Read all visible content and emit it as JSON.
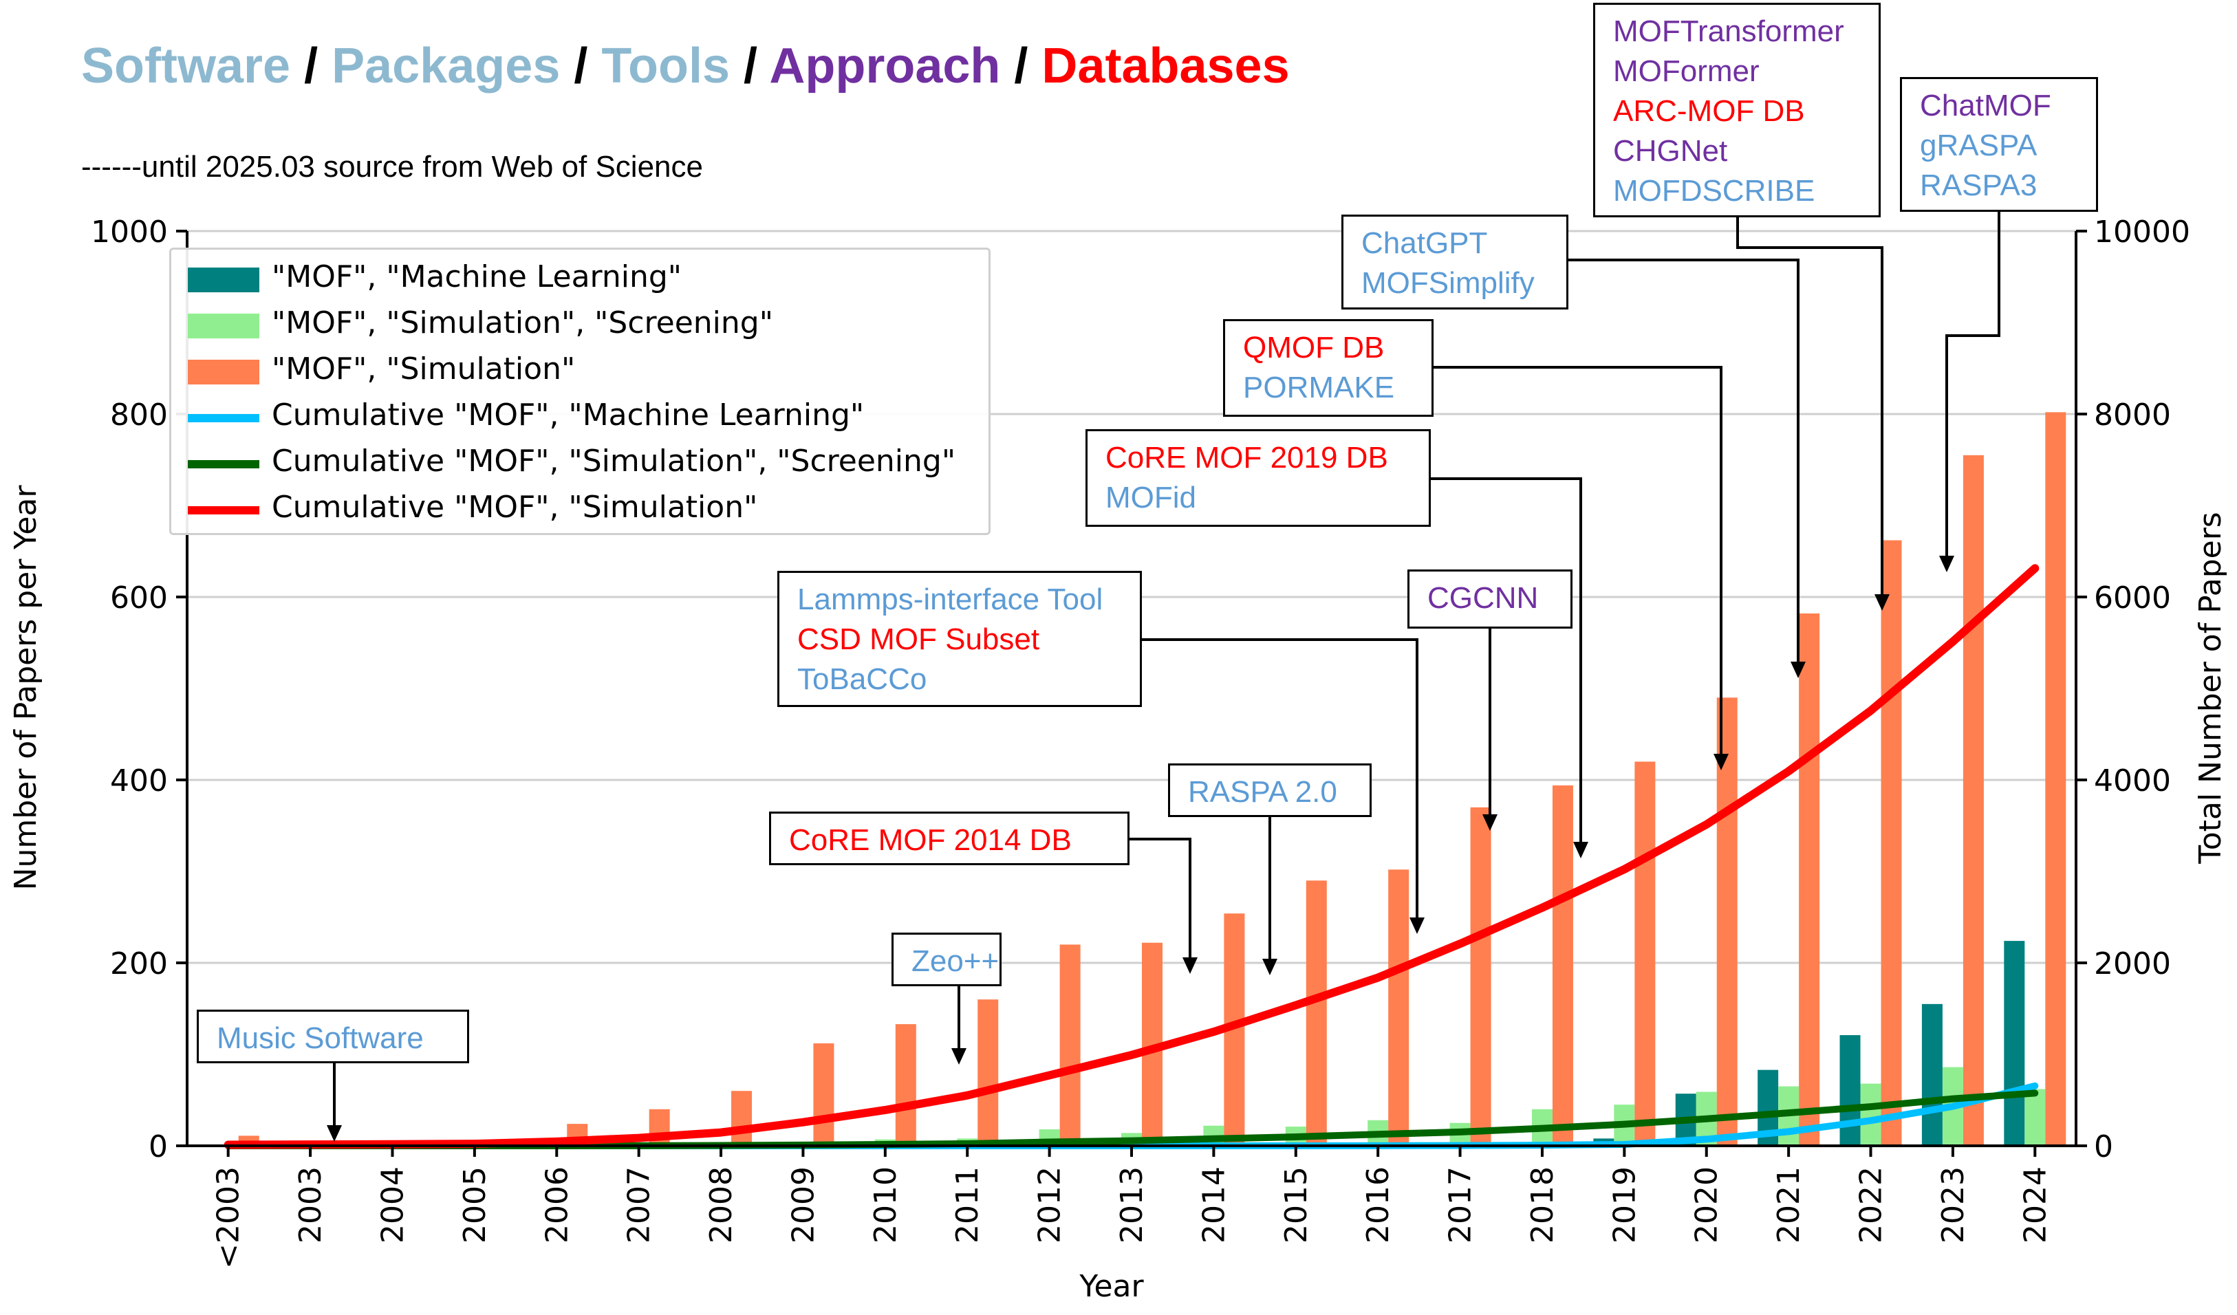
{
  "title": {
    "parts": [
      {
        "text": "Software",
        "color": "#8db9d0"
      },
      {
        "text": " / ",
        "color": "#000000"
      },
      {
        "text": "Packages",
        "color": "#8db9d0"
      },
      {
        "text": " / ",
        "color": "#000000"
      },
      {
        "text": "Tools",
        "color": "#8db9d0"
      },
      {
        "text": " / ",
        "color": "#000000"
      },
      {
        "text": "Approach",
        "color": "#7030a0"
      },
      {
        "text": " / ",
        "color": "#000000"
      },
      {
        "text": "Databases",
        "color": "#ff0000"
      }
    ]
  },
  "subtitle": "------until 2025.03 source from Web of Science",
  "colors": {
    "software": "#5b9bd5",
    "approach": "#7030a0",
    "database": "#ff0000",
    "ml_bar": "#00807f",
    "screening_bar": "#90ee90",
    "simulation_bar": "#ff7f50",
    "cum_ml": "#00bfff",
    "cum_screening": "#006400",
    "cum_simulation": "#ff0000"
  },
  "chart_data": {
    "type": "bar",
    "categories": [
      "<2003",
      "2003",
      "2004",
      "2005",
      "2006",
      "2007",
      "2008",
      "2009",
      "2010",
      "2011",
      "2012",
      "2013",
      "2014",
      "2015",
      "2016",
      "2017",
      "2018",
      "2019",
      "2020",
      "2021",
      "2022",
      "2023",
      "2024"
    ],
    "xlabel": "Year",
    "ylabel": "Number of Papers per Year",
    "ylabel_right": "Total Number of Papers",
    "ylim": [
      0,
      1000
    ],
    "ylim_right": [
      0,
      10000
    ],
    "yticks": [
      0,
      200,
      400,
      600,
      800,
      1000
    ],
    "yticks_right": [
      0,
      2000,
      4000,
      6000,
      8000,
      10000
    ],
    "grid": true,
    "legend_position": "top-left",
    "series": [
      {
        "name": "\"MOF\", \"Machine Learning\"",
        "kind": "bar",
        "axis": "left",
        "color": "#00807f",
        "values": [
          0,
          0,
          0,
          0,
          0,
          0,
          0,
          0,
          0,
          0,
          0,
          0,
          0,
          0,
          1,
          2,
          4,
          8,
          57,
          83,
          121,
          155,
          224
        ]
      },
      {
        "name": "\"MOF\", \"Simulation\", \"Screening\"",
        "kind": "bar",
        "axis": "left",
        "color": "#90ee90",
        "values": [
          0,
          0,
          0,
          0,
          0,
          1,
          3,
          4,
          7,
          8,
          18,
          14,
          22,
          21,
          28,
          25,
          40,
          45,
          59,
          65,
          68,
          86,
          62
        ]
      },
      {
        "name": "\"MOF\", \"Simulation\"",
        "kind": "bar",
        "axis": "left",
        "color": "#ff7f50",
        "values": [
          11,
          3,
          3,
          5,
          24,
          40,
          60,
          112,
          133,
          160,
          220,
          222,
          254,
          290,
          302,
          370,
          394,
          420,
          490,
          582,
          662,
          755,
          802
        ]
      },
      {
        "name": "Cumulative \"MOF\", \"Machine Learning\"",
        "kind": "line",
        "axis": "right",
        "color": "#00bfff",
        "values": [
          0,
          0,
          0,
          0,
          0,
          0,
          0,
          0,
          0,
          0,
          0,
          0,
          0,
          0,
          1,
          3,
          7,
          15,
          72,
          155,
          276,
          431,
          655
        ]
      },
      {
        "name": "Cumulative \"MOF\", \"Simulation\", \"Screening\"",
        "kind": "line",
        "axis": "right",
        "color": "#006400",
        "values": [
          0,
          0,
          0,
          0,
          0,
          1,
          4,
          8,
          15,
          23,
          41,
          55,
          77,
          98,
          126,
          151,
          191,
          236,
          295,
          360,
          428,
          514,
          576
        ]
      },
      {
        "name": "Cumulative \"MOF\", \"Simulation\"",
        "kind": "line",
        "axis": "right",
        "color": "#ff0000",
        "values": [
          11,
          14,
          17,
          22,
          46,
          86,
          146,
          258,
          391,
          551,
          771,
          993,
          1247,
          1537,
          1839,
          2209,
          2603,
          3023,
          3513,
          4095,
          4757,
          5512,
          6314
        ]
      }
    ]
  },
  "annotations": [
    {
      "id": "music",
      "lines": [
        {
          "text": "Music Software",
          "type": "software"
        }
      ],
      "year": "2003"
    },
    {
      "id": "zeo",
      "lines": [
        {
          "text": "Zeo++",
          "type": "software"
        }
      ],
      "year": "2011"
    },
    {
      "id": "core2014",
      "lines": [
        {
          "text": "CoRE MOF 2014 DB",
          "type": "database"
        }
      ],
      "year": "2014"
    },
    {
      "id": "raspa2",
      "lines": [
        {
          "text": "RASPA 2.0",
          "type": "software"
        }
      ],
      "year": "2015"
    },
    {
      "id": "lammps",
      "lines": [
        {
          "text": "Lammps-interface Tool",
          "type": "software"
        },
        {
          "text": "CSD MOF Subset",
          "type": "database"
        },
        {
          "text": "ToBaCCo",
          "type": "software"
        }
      ],
      "year": "2017"
    },
    {
      "id": "cgcnn",
      "lines": [
        {
          "text": "CGCNN",
          "type": "approach"
        }
      ],
      "year": "2018"
    },
    {
      "id": "core2019",
      "lines": [
        {
          "text": "CoRE MOF 2019 DB",
          "type": "database"
        },
        {
          "text": "MOFid",
          "type": "software"
        }
      ],
      "year": "2019"
    },
    {
      "id": "qmof",
      "lines": [
        {
          "text": "QMOF DB",
          "type": "database"
        },
        {
          "text": "PORMAKE",
          "type": "software"
        }
      ],
      "year": "2021"
    },
    {
      "id": "chatgpt",
      "lines": [
        {
          "text": "ChatGPT",
          "type": "software"
        },
        {
          "text": "MOFSimplify",
          "type": "software"
        }
      ],
      "year": "2022"
    },
    {
      "id": "moftrans",
      "lines": [
        {
          "text": "MOFTransformer",
          "type": "approach"
        },
        {
          "text": "MOFormer",
          "type": "approach"
        },
        {
          "text": "ARC-MOF DB",
          "type": "database"
        },
        {
          "text": "CHGNet",
          "type": "approach"
        },
        {
          "text": "MOFDSCRIBE",
          "type": "software"
        }
      ],
      "year": "2023"
    },
    {
      "id": "chatmof",
      "lines": [
        {
          "text": "ChatMOF",
          "type": "approach"
        },
        {
          "text": "gRASPA",
          "type": "software"
        },
        {
          "text": "RASPA3",
          "type": "software"
        }
      ],
      "year": "2024"
    }
  ]
}
